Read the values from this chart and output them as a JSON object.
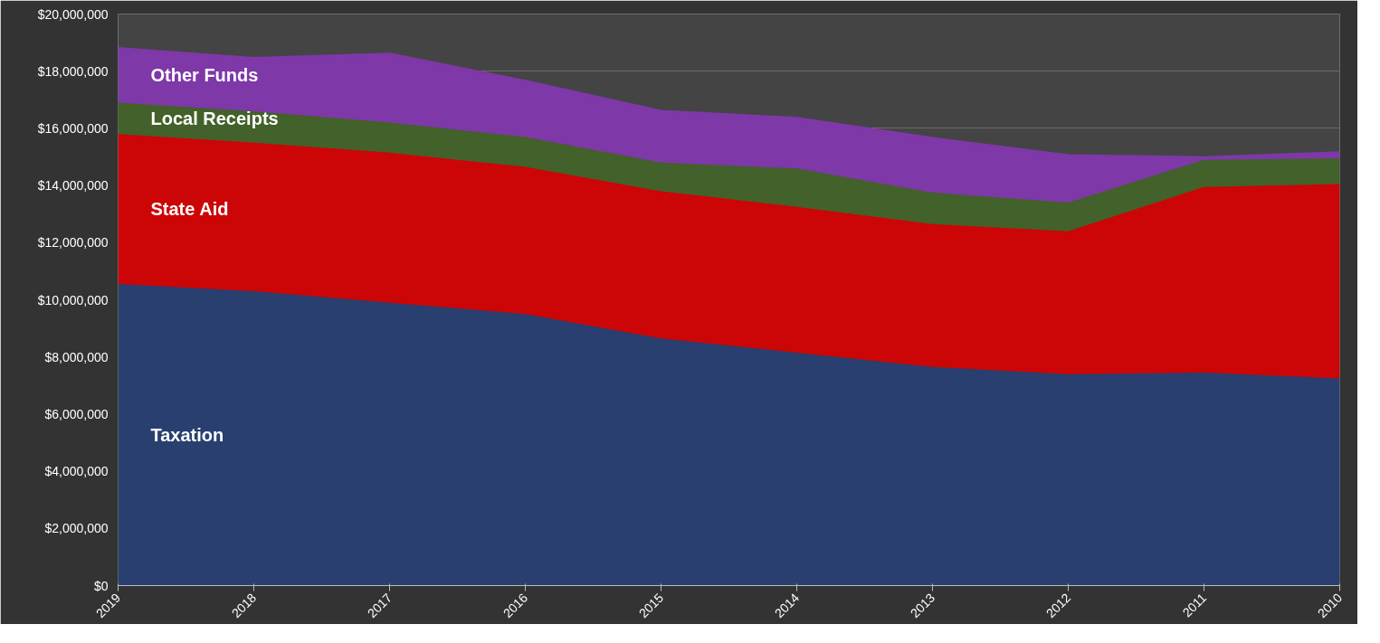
{
  "chart_data": {
    "type": "area",
    "stacked": true,
    "categories": [
      "2019",
      "2018",
      "2017",
      "2016",
      "2015",
      "2014",
      "2013",
      "2012",
      "2011",
      "2010"
    ],
    "series": [
      {
        "name": "Taxation",
        "color": "#283f70",
        "values": [
          10550000,
          10300000,
          9900000,
          9500000,
          8650000,
          8150000,
          7650000,
          7400000,
          7450000,
          7250000
        ]
      },
      {
        "name": "State Aid",
        "color": "#cc0606",
        "values": [
          5250000,
          5200000,
          5250000,
          5150000,
          5150000,
          5100000,
          5000000,
          5000000,
          6500000,
          6800000
        ]
      },
      {
        "name": "Local Receipts",
        "color": "#43612a",
        "values": [
          1100000,
          1100000,
          1050000,
          1050000,
          1000000,
          1350000,
          1100000,
          1000000,
          950000,
          900000
        ]
      },
      {
        "name": "Other Funds",
        "color": "#7e38a8",
        "values": [
          1900000,
          1850000,
          2400000,
          1950000,
          1800000,
          1750000,
          1900000,
          1650000,
          80000,
          200000
        ]
      }
    ],
    "ylim": [
      0,
      20000000
    ],
    "yticks": [
      {
        "value": 0,
        "label": "$0"
      },
      {
        "value": 2000000,
        "label": "$2,000,000"
      },
      {
        "value": 4000000,
        "label": "$4,000,000"
      },
      {
        "value": 6000000,
        "label": "$6,000,000"
      },
      {
        "value": 8000000,
        "label": "$8,000,000"
      },
      {
        "value": 10000000,
        "label": "$10,000,000"
      },
      {
        "value": 12000000,
        "label": "$12,000,000"
      },
      {
        "value": 14000000,
        "label": "$14,000,000"
      },
      {
        "value": 16000000,
        "label": "$16,000,000"
      },
      {
        "value": 18000000,
        "label": "$18,000,000"
      },
      {
        "value": 20000000,
        "label": "$20,000,000"
      }
    ],
    "grid": "y"
  }
}
